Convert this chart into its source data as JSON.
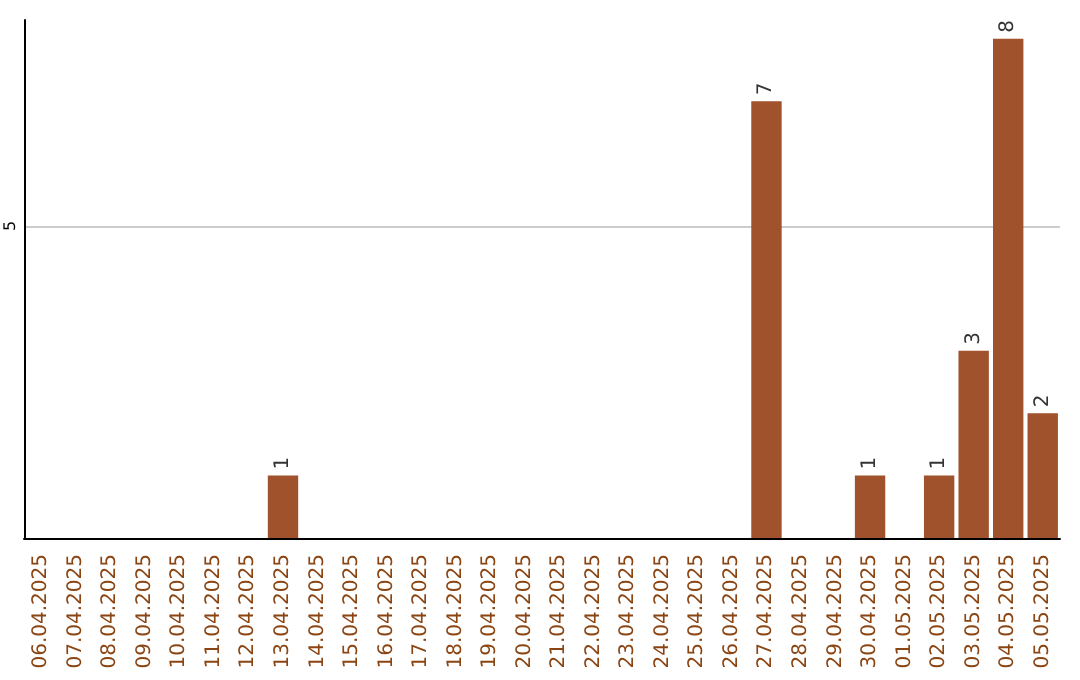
{
  "chart_data": {
    "type": "bar",
    "categories": [
      "06.04.2025",
      "07.04.2025",
      "08.04.2025",
      "09.04.2025",
      "10.04.2025",
      "11.04.2025",
      "12.04.2025",
      "13.04.2025",
      "14.04.2025",
      "15.04.2025",
      "16.04.2025",
      "17.04.2025",
      "18.04.2025",
      "19.04.2025",
      "20.04.2025",
      "21.04.2025",
      "22.04.2025",
      "23.04.2025",
      "24.04.2025",
      "25.04.2025",
      "26.04.2025",
      "27.04.2025",
      "28.04.2025",
      "29.04.2025",
      "30.04.2025",
      "01.05.2025",
      "02.05.2025",
      "03.05.2025",
      "04.05.2025",
      "05.05.2025"
    ],
    "values": [
      0,
      0,
      0,
      0,
      0,
      0,
      0,
      1,
      0,
      0,
      0,
      0,
      0,
      0,
      0,
      0,
      0,
      0,
      0,
      0,
      0,
      7,
      0,
      0,
      1,
      0,
      1,
      3,
      8,
      2
    ],
    "value_labels": [
      null,
      null,
      null,
      null,
      null,
      null,
      null,
      "1",
      null,
      null,
      null,
      null,
      null,
      null,
      null,
      null,
      null,
      null,
      null,
      null,
      null,
      "7",
      null,
      null,
      "1",
      null,
      "1",
      "3",
      "8",
      "2"
    ],
    "color": "#a0522d",
    "ylim": [
      0,
      8.3
    ],
    "yticks": [
      5
    ],
    "grid": "y"
  }
}
